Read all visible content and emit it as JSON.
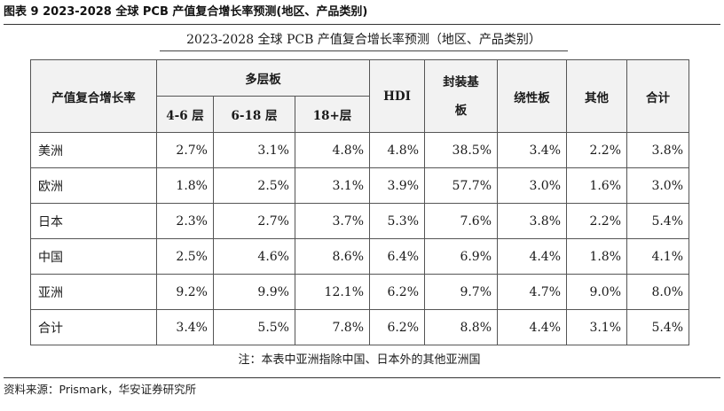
{
  "figure_title": "图表 9 2023-2028 全球 PCB 产值复合增长率预测(地区、产品类别)",
  "table_title": "2023-2028 全球 PCB 产值复合增长率预测（地区、产品类别）",
  "header": {
    "corner": "产值复合增长率",
    "multilayer": "多层板",
    "sub": [
      "4-6 层",
      "6-18 层",
      "18+层"
    ],
    "hdi": "HDI",
    "package_line1": "封装基",
    "package_line2": "板",
    "flex": "绕性板",
    "other": "其他",
    "total": "合计"
  },
  "rows": [
    {
      "region": "美洲",
      "values": [
        "2.7%",
        "3.1%",
        "4.8%",
        "4.8%",
        "38.5%",
        "3.4%",
        "2.2%",
        "3.8%"
      ]
    },
    {
      "region": "欧洲",
      "values": [
        "1.8%",
        "2.5%",
        "3.1%",
        "3.9%",
        "57.7%",
        "3.0%",
        "1.6%",
        "3.0%"
      ]
    },
    {
      "region": "日本",
      "values": [
        "2.3%",
        "2.7%",
        "3.7%",
        "5.3%",
        "7.6%",
        "3.8%",
        "2.2%",
        "5.4%"
      ]
    },
    {
      "region": "中国",
      "values": [
        "2.5%",
        "4.6%",
        "8.6%",
        "6.4%",
        "6.9%",
        "4.4%",
        "1.8%",
        "4.1%"
      ]
    },
    {
      "region": "亚洲",
      "values": [
        "9.2%",
        "9.9%",
        "12.1%",
        "6.2%",
        "9.7%",
        "4.7%",
        "9.0%",
        "8.0%"
      ]
    },
    {
      "region": "合计",
      "values": [
        "3.4%",
        "5.5%",
        "7.8%",
        "6.2%",
        "8.8%",
        "4.4%",
        "3.1%",
        "5.4%"
      ]
    }
  ],
  "note": "注：本表中亚洲指除中国、日本外的其他亚洲国",
  "source": "资料来源：Prismark，华安证券研究所"
}
